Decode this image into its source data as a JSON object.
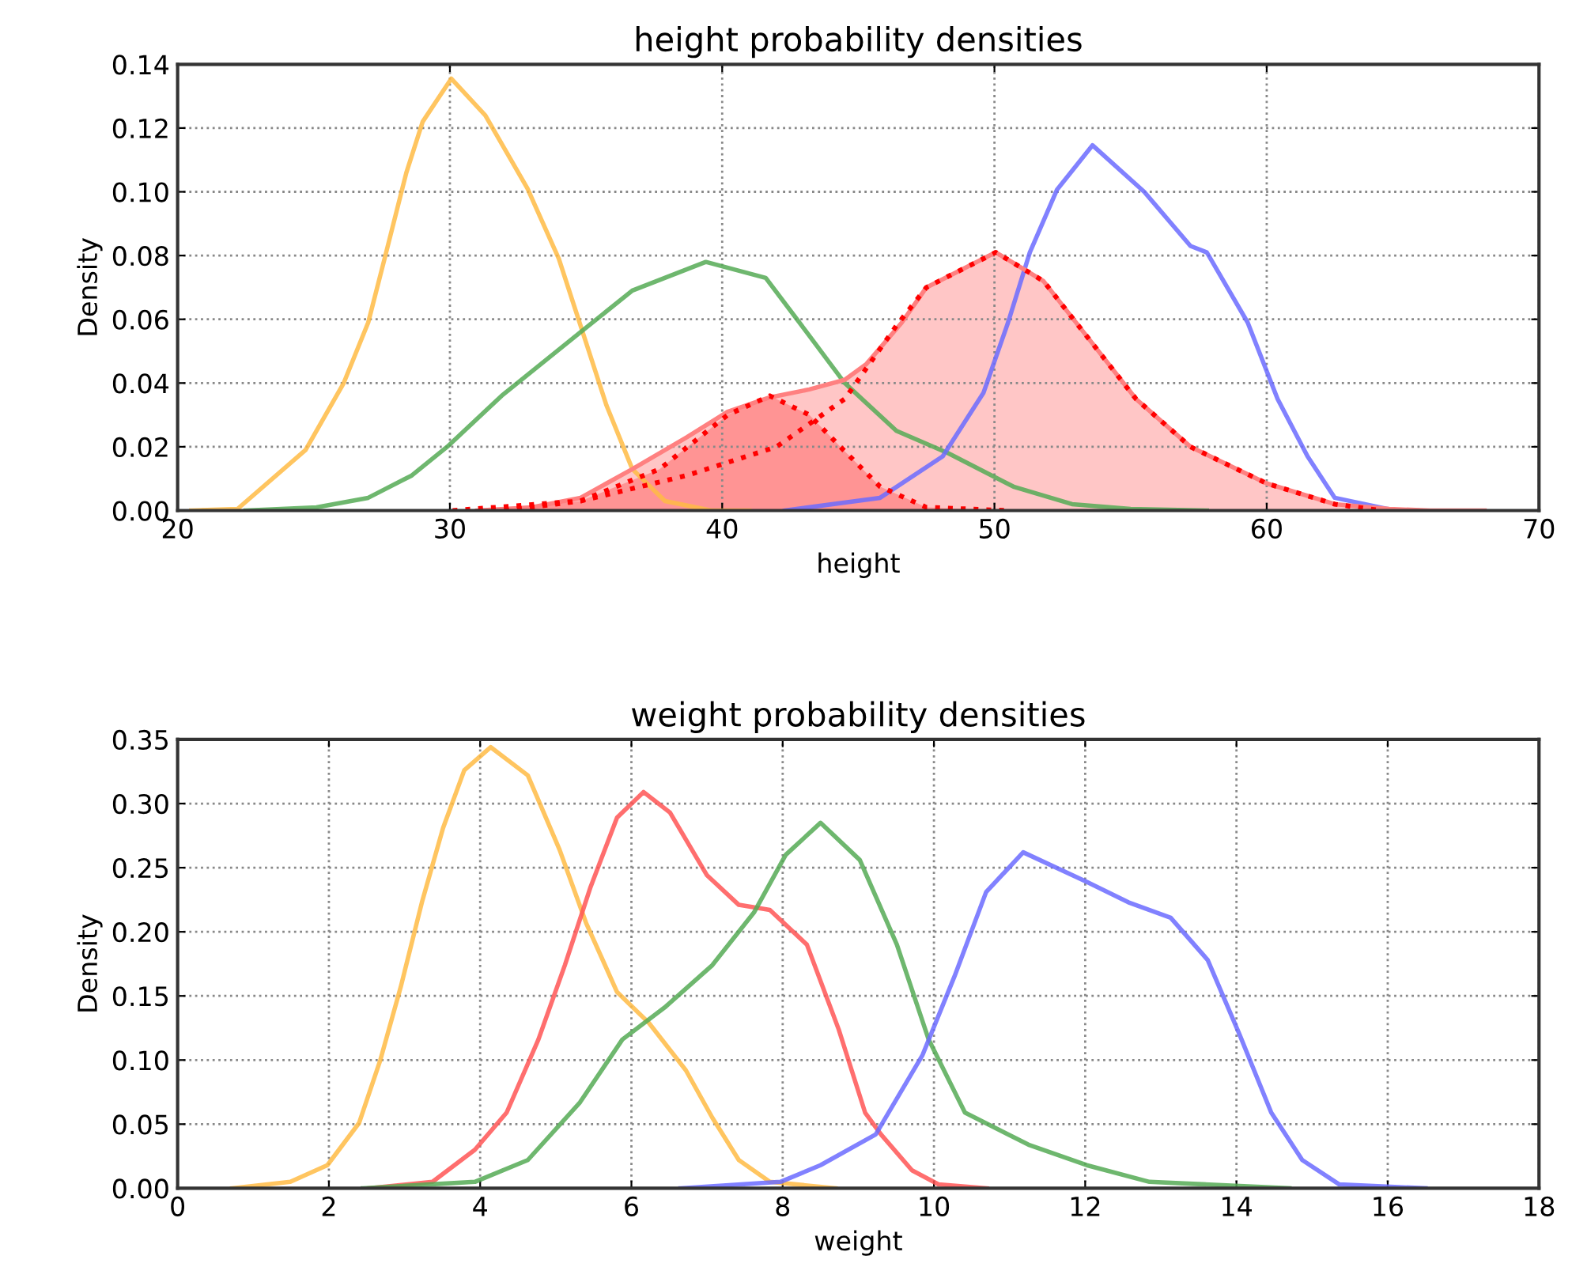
{
  "chart_data": [
    {
      "type": "line",
      "title": "height probability densities",
      "xlabel": "height",
      "ylabel": "Density",
      "xlim": [
        20,
        70
      ],
      "ylim": [
        0,
        0.14
      ],
      "xticks": [
        20,
        30,
        40,
        50,
        60,
        70
      ],
      "yticks": [
        {
          "value": 0,
          "label": "0.00"
        },
        {
          "value": 0.02,
          "label": "0.02"
        },
        {
          "value": 0.04,
          "label": "0.04"
        },
        {
          "value": 0.06,
          "label": "0.06"
        },
        {
          "value": 0.08,
          "label": "0.08"
        },
        {
          "value": 0.1,
          "label": "0.10"
        },
        {
          "value": 0.12,
          "label": "0.12"
        },
        {
          "value": 0.14,
          "label": "0.14"
        }
      ],
      "grid": true,
      "series": [
        {
          "color": "#ffbb44",
          "x": [
            20.5,
            22.2,
            24.7,
            26.1,
            27.0,
            27.6,
            28.4,
            29.0,
            30.05,
            31.3,
            32.85,
            34.0,
            34.8,
            35.75,
            36.7,
            37.9,
            39.6,
            41.0
          ],
          "values": [
            0,
            0.0005,
            0.019,
            0.04,
            0.059,
            0.079,
            0.106,
            0.122,
            0.1355,
            0.124,
            0.101,
            0.079,
            0.058,
            0.033,
            0.013,
            0.003,
            0,
            0
          ]
        },
        {
          "color": "#55aa55",
          "x": [
            22.5,
            25.1,
            27.0,
            28.6,
            29.9,
            31.9,
            34.8,
            36.7,
            39.4,
            41.6,
            43.1,
            44.5,
            46.4,
            48.3,
            50.7,
            52.85,
            55.0,
            57.8
          ],
          "values": [
            0,
            0.001,
            0.004,
            0.011,
            0.02,
            0.036,
            0.056,
            0.069,
            0.078,
            0.073,
            0.056,
            0.04,
            0.025,
            0.018,
            0.0075,
            0.002,
            0.0005,
            0
          ]
        },
        {
          "color": "#6b6bff",
          "x": [
            42.3,
            45.8,
            48.1,
            49.6,
            50.5,
            51.3,
            52.3,
            53.6,
            55.5,
            57.2,
            57.8,
            59.3,
            60.4,
            61.5,
            62.5,
            64.7,
            65.5
          ],
          "values": [
            0,
            0.004,
            0.017,
            0.037,
            0.059,
            0.081,
            0.1007,
            0.1146,
            0.1,
            0.083,
            0.081,
            0.059,
            0.035,
            0.017,
            0.004,
            0,
            0
          ]
        },
        {
          "type": "area",
          "color": "#ff8080",
          "x": [
            31,
            33,
            34.8,
            36.7,
            38.7,
            40.2,
            41.75,
            43.2,
            44.5,
            45.3,
            46.6,
            47.5,
            50.05,
            51.8,
            53.5,
            55.2,
            57.2,
            60.0,
            62.5,
            64.5,
            66,
            68
          ],
          "values": [
            0,
            0.001,
            0.004,
            0.013,
            0.023,
            0.031,
            0.0355,
            0.038,
            0.041,
            0.046,
            0.059,
            0.07,
            0.081,
            0.072,
            0.0535,
            0.035,
            0.02,
            0.0085,
            0.002,
            0.0005,
            0,
            0
          ]
        },
        {
          "type": "area",
          "color": "#ff0000",
          "line_style": "dotted",
          "x": [
            32,
            34.8,
            37.7,
            40.2,
            41.75,
            43.2,
            44.5,
            45.8,
            47.5,
            50.5
          ],
          "values": [
            0,
            0.003,
            0.013,
            0.03,
            0.036,
            0.03,
            0.0186,
            0.0075,
            0.001,
            0
          ]
        },
        {
          "color": "#ff0000",
          "line_style": "dotted",
          "x": [
            30.1,
            34.8,
            38.7,
            42.0,
            44.5,
            46.4,
            47.5,
            50.05,
            51.8,
            53.5,
            55.2,
            57.2,
            60.0,
            62.5,
            64.2
          ],
          "values": [
            0,
            0.003,
            0.011,
            0.02,
            0.035,
            0.058,
            0.07,
            0.081,
            0.072,
            0.0535,
            0.035,
            0.02,
            0.0085,
            0.002,
            0
          ]
        }
      ]
    },
    {
      "type": "line",
      "title": "weight probability densities",
      "xlabel": "weight",
      "ylabel": "Density",
      "xlim": [
        0,
        18
      ],
      "ylim": [
        0,
        0.35
      ],
      "xticks": [
        0,
        2,
        4,
        6,
        8,
        10,
        12,
        14,
        16,
        18
      ],
      "yticks": [
        {
          "value": 0,
          "label": "0.00"
        },
        {
          "value": 0.05,
          "label": "0.05"
        },
        {
          "value": 0.1,
          "label": "0.10"
        },
        {
          "value": 0.15,
          "label": "0.15"
        },
        {
          "value": 0.2,
          "label": "0.20"
        },
        {
          "value": 0.25,
          "label": "0.25"
        },
        {
          "value": 0.3,
          "label": "0.30"
        },
        {
          "value": 0.35,
          "label": "0.35"
        }
      ],
      "grid": true,
      "series": [
        {
          "color": "#ffbb44",
          "x": [
            0.72,
            1.49,
            1.98,
            2.4,
            2.68,
            2.95,
            3.23,
            3.51,
            3.79,
            4.14,
            4.63,
            5.05,
            5.4,
            5.81,
            6.23,
            6.72,
            7.07,
            7.42,
            7.83,
            8.7
          ],
          "values": [
            0,
            0.005,
            0.018,
            0.051,
            0.1,
            0.157,
            0.223,
            0.281,
            0.326,
            0.344,
            0.322,
            0.264,
            0.207,
            0.153,
            0.129,
            0.092,
            0.055,
            0.022,
            0.005,
            0
          ]
        },
        {
          "color": "#ff5555",
          "x": [
            2.53,
            3.37,
            3.93,
            4.35,
            4.77,
            5.12,
            5.46,
            5.81,
            6.16,
            6.51,
            7.0,
            7.42,
            7.83,
            8.32,
            8.74,
            9.09,
            9.3,
            9.71,
            10.06,
            10.7
          ],
          "values": [
            0,
            0.005,
            0.03,
            0.059,
            0.116,
            0.174,
            0.235,
            0.289,
            0.309,
            0.293,
            0.244,
            0.221,
            0.217,
            0.19,
            0.124,
            0.059,
            0.042,
            0.014,
            0.003,
            0
          ]
        },
        {
          "color": "#55aa55",
          "x": [
            2.45,
            3.93,
            4.63,
            5.32,
            5.88,
            6.44,
            7.07,
            7.62,
            8.04,
            8.5,
            9.02,
            9.51,
            9.93,
            10.41,
            11.25,
            12.02,
            12.85,
            14.7
          ],
          "values": [
            0,
            0.005,
            0.022,
            0.067,
            0.116,
            0.141,
            0.174,
            0.215,
            0.26,
            0.285,
            0.256,
            0.19,
            0.116,
            0.059,
            0.034,
            0.018,
            0.005,
            0
          ]
        },
        {
          "color": "#6b6bff",
          "x": [
            6.65,
            7.97,
            8.5,
            9.23,
            9.85,
            10.27,
            10.69,
            11.18,
            12.02,
            12.57,
            13.13,
            13.62,
            14.04,
            14.46,
            14.87,
            15.36,
            16.5
          ],
          "values": [
            0,
            0.005,
            0.018,
            0.042,
            0.104,
            0.165,
            0.231,
            0.262,
            0.239,
            0.223,
            0.211,
            0.178,
            0.12,
            0.059,
            0.022,
            0.003,
            0
          ]
        }
      ]
    }
  ]
}
